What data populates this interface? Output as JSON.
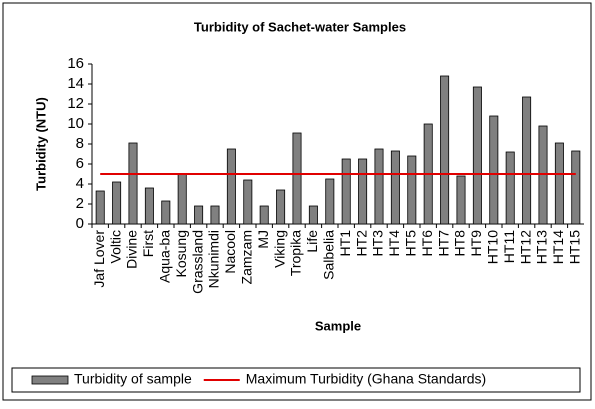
{
  "chart_data": {
    "type": "bar",
    "title": "Turbidity of Sachet-water Samples",
    "x_label": "Sample",
    "y_label": "Turbidity (NTU)",
    "categories": [
      "Jaf Lover",
      "Voltic",
      "Divine",
      "First",
      "Aqua-ba",
      "Kosung",
      "Grassland",
      "Nkunimdi",
      "Nacool",
      "Zamzam",
      "MJ",
      "Viking",
      "Tropika",
      "Life",
      "Salbelia",
      "HT1",
      "HT2",
      "HT3",
      "HT4",
      "HT5",
      "HT6",
      "HT7",
      "HT8",
      "HT9",
      "HT10",
      "HT11",
      "HT12",
      "HT13",
      "HT14",
      "HT15"
    ],
    "series": [
      {
        "name": "Turbidity of sample",
        "type": "bar",
        "color": "#808080",
        "values": [
          3.3,
          4.2,
          8.1,
          3.6,
          2.3,
          5.0,
          1.8,
          1.8,
          7.5,
          4.4,
          1.8,
          3.4,
          9.1,
          1.8,
          4.5,
          6.5,
          6.5,
          7.5,
          7.3,
          6.8,
          10.0,
          14.8,
          4.8,
          13.7,
          10.8,
          7.2,
          12.7,
          9.8,
          8.1,
          7.3
        ]
      },
      {
        "name": "Maximum Turbidity (Ghana Standards)",
        "type": "line",
        "color": "#e00000",
        "values": [
          5,
          5,
          5,
          5,
          5,
          5,
          5,
          5,
          5,
          5,
          5,
          5,
          5,
          5,
          5,
          5,
          5,
          5,
          5,
          5,
          5,
          5,
          5,
          5,
          5,
          5,
          5,
          5,
          5,
          5
        ]
      }
    ],
    "ylim": [
      0,
      16
    ],
    "yticks": [
      0,
      2,
      4,
      6,
      8,
      10,
      12,
      14,
      16
    ],
    "legend": "bottom"
  }
}
